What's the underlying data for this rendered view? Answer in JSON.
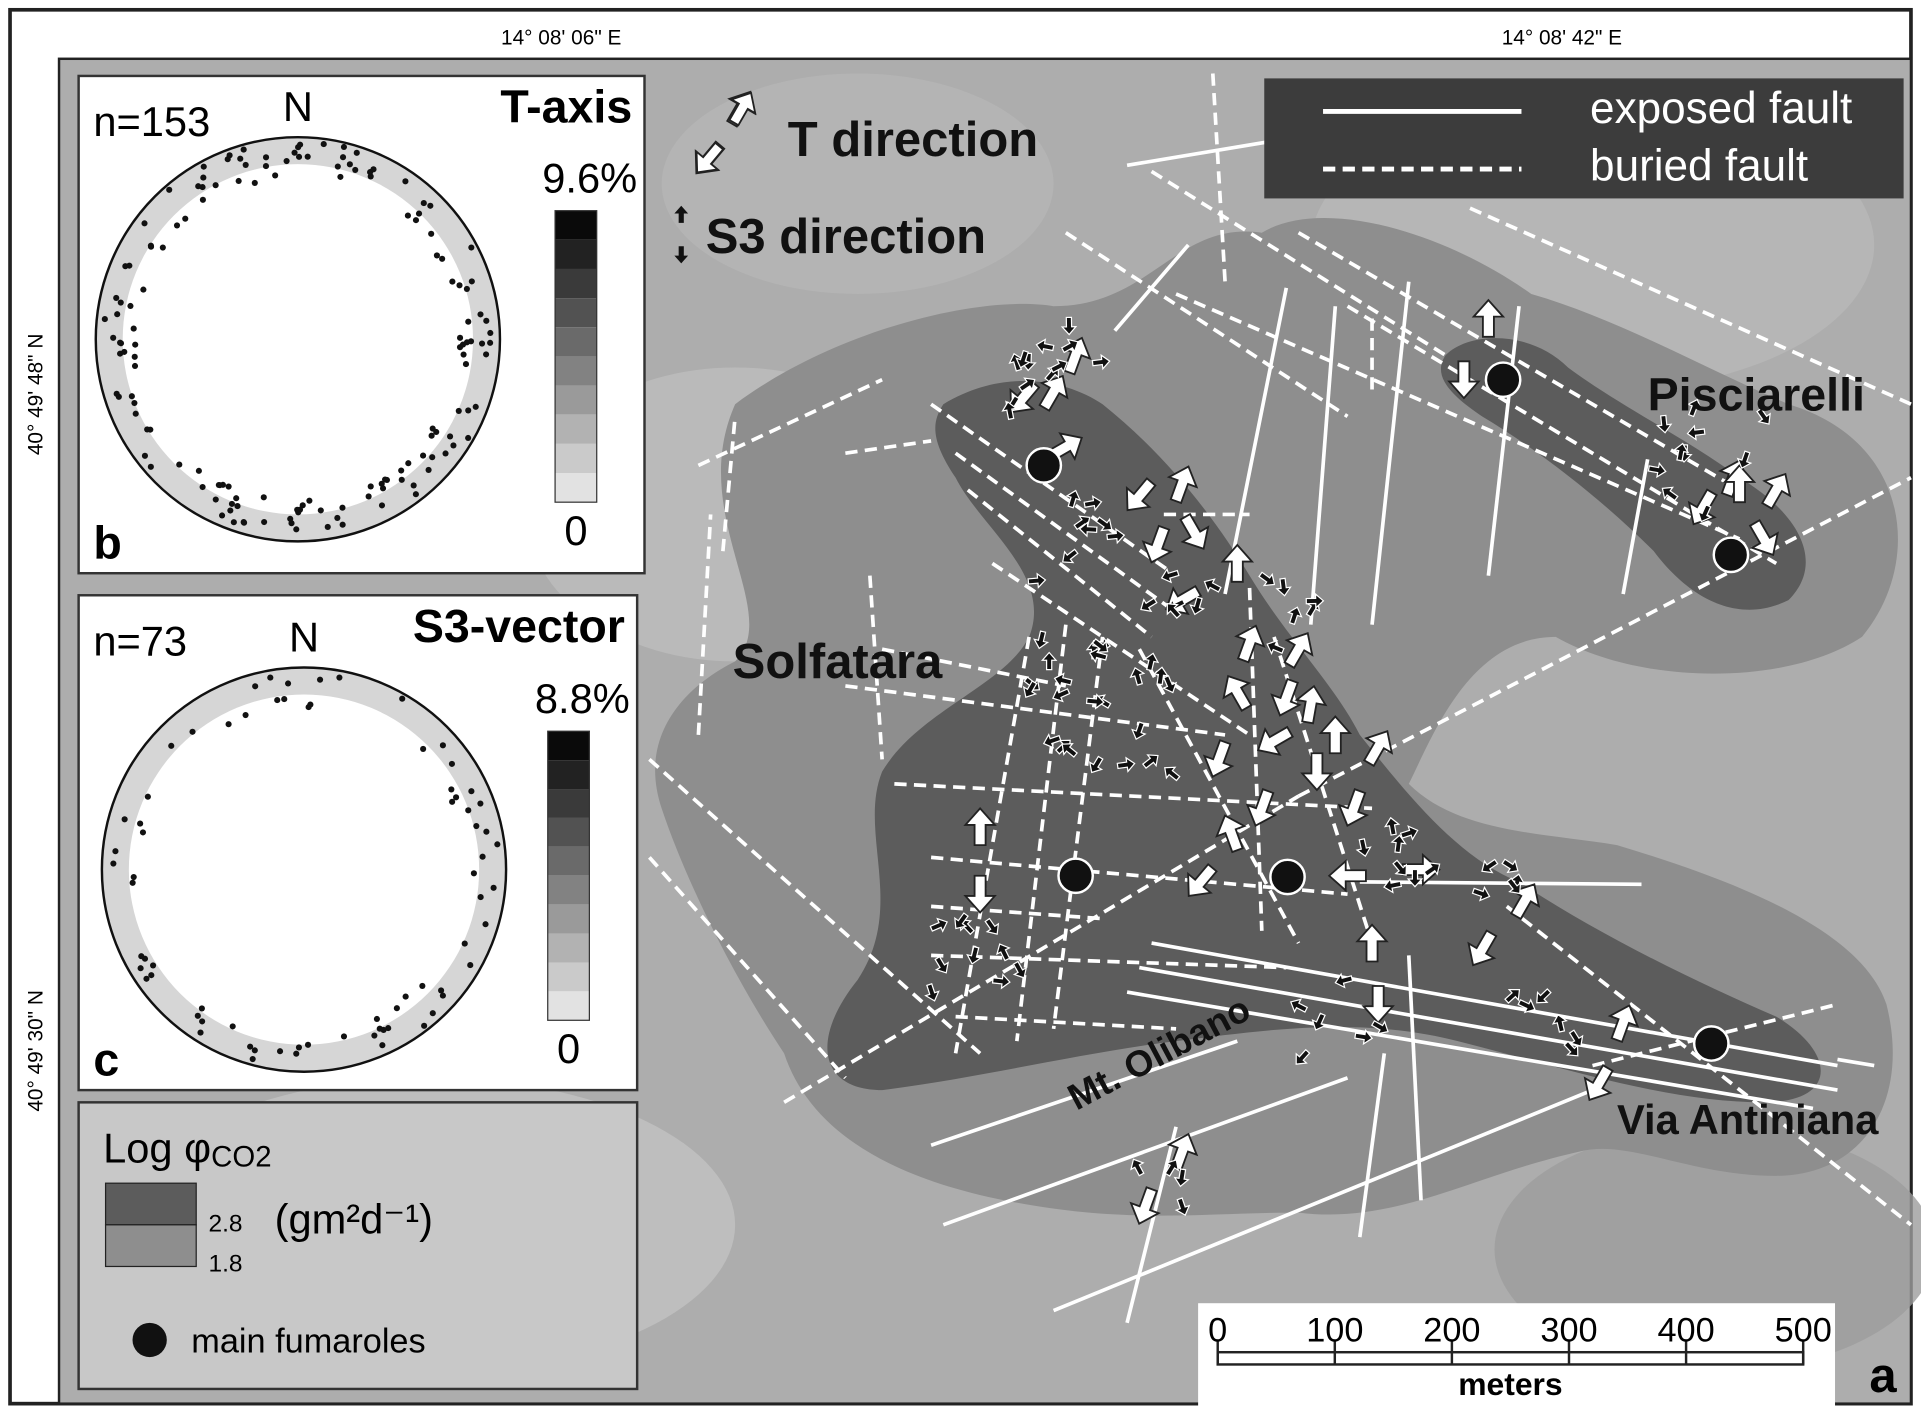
{
  "coordinates": {
    "top": [
      "14° 08' 06\" E",
      "14° 08' 42\" E"
    ],
    "left": [
      "40° 49' 48\" N",
      "40° 49' 30\" N"
    ]
  },
  "fault_legend": {
    "exposed": "exposed fault",
    "buried": "buried fault"
  },
  "arrow_legend": {
    "t": "T direction",
    "s3": "S3 direction"
  },
  "places": {
    "solfatara": "Solfatara",
    "pisciarelli": "Pisciarelli",
    "olibano": "Mt. Olibano",
    "antiniana": "Via Antiniana"
  },
  "panel_b": {
    "n": "n=153",
    "north": "N",
    "title": "T-axis",
    "max": "9.6%",
    "min": "0",
    "letter": "b"
  },
  "panel_c": {
    "n": "n=73",
    "north": "N",
    "title": "S3-vector",
    "max": "8.8%",
    "min": "0",
    "letter": "c"
  },
  "co2_legend": {
    "title": "Log φ",
    "subscript": "CO2",
    "high": "2.8",
    "low": "1.8",
    "unit": "(gm²d⁻¹)",
    "fumaroles": "main fumaroles"
  },
  "scale": {
    "ticks": [
      0,
      100,
      200,
      300,
      400,
      500
    ],
    "unit": "meters"
  },
  "panel_a": {
    "letter": "a"
  }
}
